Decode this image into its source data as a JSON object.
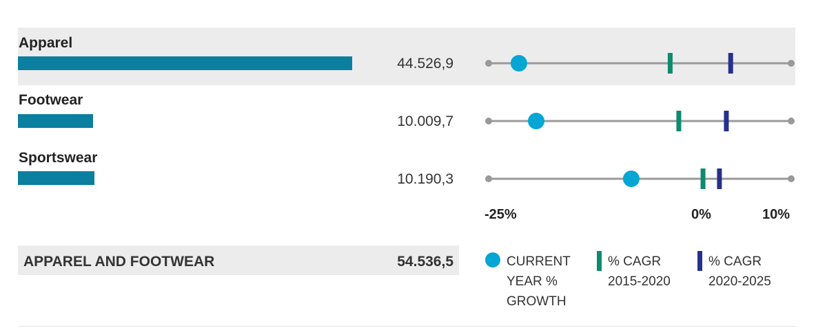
{
  "chart_data": {
    "type": "dot-range",
    "categories": [
      "Apparel",
      "Footwear",
      "Sportswear"
    ],
    "sales": [
      "44.526,9",
      "10.009,7",
      "10.190,3"
    ],
    "sales_numeric": [
      44526.9,
      10009.7,
      10190.3
    ],
    "current_year_growth": [
      -21.5,
      -19.5,
      -8.5
    ],
    "cagr_2015_2020": [
      -4.0,
      -3.0,
      -0.2
    ],
    "cagr_2020_2025": [
      3.0,
      2.5,
      1.7
    ],
    "x_range": [
      -25,
      10
    ],
    "x_ticks": [
      {
        "value": -25,
        "label": "-25%"
      },
      {
        "value": 0,
        "label": "0%"
      },
      {
        "value": 10,
        "label": "10%"
      }
    ],
    "total": {
      "label": "APPAREL AND FOOTWEAR",
      "value": "54.536,5"
    },
    "legend": [
      {
        "id": "growth",
        "lines": [
          "CURRENT",
          "YEAR %",
          "GROWTH"
        ],
        "color": "#05a6d4",
        "marker": "circle"
      },
      {
        "id": "cagr1520",
        "lines": [
          "% CAGR",
          "2015-2020"
        ],
        "color": "#0d8b6e",
        "marker": "bar"
      },
      {
        "id": "cagr2025",
        "lines": [
          "% CAGR",
          "2020-2025"
        ],
        "color": "#27308a",
        "marker": "bar"
      }
    ],
    "colors": {
      "bar": "#0a7fa0",
      "growth": "#05a6d4",
      "cagr_2015_2020": "#0d8b6e",
      "cagr_2020_2025": "#27308a",
      "axis": "#999999"
    }
  }
}
